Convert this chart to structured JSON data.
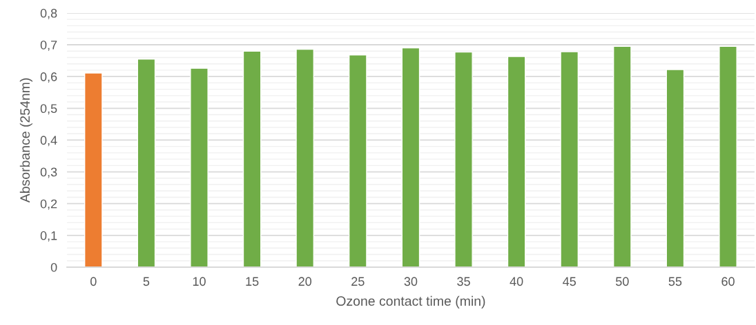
{
  "chart_data": {
    "type": "bar",
    "xlabel": "Ozone contact time (min)",
    "ylabel": "Absorbance (254nm)",
    "categories": [
      "0",
      "5",
      "10",
      "15",
      "20",
      "25",
      "30",
      "35",
      "40",
      "45",
      "50",
      "55",
      "60"
    ],
    "values": [
      0.611,
      0.655,
      0.626,
      0.68,
      0.686,
      0.668,
      0.69,
      0.677,
      0.663,
      0.678,
      0.695,
      0.622,
      0.695
    ],
    "colors": [
      "#ed7d31",
      "#70ad47",
      "#70ad47",
      "#70ad47",
      "#70ad47",
      "#70ad47",
      "#70ad47",
      "#70ad47",
      "#70ad47",
      "#70ad47",
      "#70ad47",
      "#70ad47",
      "#70ad47"
    ],
    "ylim": [
      0,
      0.8
    ],
    "yticks": [
      0,
      {
        "value": 0.02,
        "label": null
      },
      {
        "value": 0.04,
        "label": null
      },
      {
        "value": 0.06,
        "label": null
      },
      {
        "value": 0.08,
        "label": null
      },
      {
        "value": 0.1,
        "label": "0,1"
      },
      {
        "value": 0.12,
        "label": null
      },
      {
        "value": 0.14,
        "label": null
      },
      {
        "value": 0.16,
        "label": null
      },
      {
        "value": 0.18,
        "label": null
      },
      {
        "value": 0.2,
        "label": "0,2"
      },
      {
        "value": 0.22,
        "label": null
      },
      {
        "value": 0.24,
        "label": null
      },
      {
        "value": 0.26,
        "label": null
      },
      {
        "value": 0.28,
        "label": null
      },
      {
        "value": 0.3,
        "label": "0,3"
      },
      {
        "value": 0.32,
        "label": null
      },
      {
        "value": 0.34,
        "label": null
      },
      {
        "value": 0.36,
        "label": null
      },
      {
        "value": 0.38,
        "label": null
      },
      {
        "value": 0.4,
        "label": "0,4"
      },
      {
        "value": 0.42,
        "label": null
      },
      {
        "value": 0.44,
        "label": null
      },
      {
        "value": 0.46,
        "label": null
      },
      {
        "value": 0.48,
        "label": null
      },
      {
        "value": 0.5,
        "label": "0,5"
      },
      {
        "value": 0.52,
        "label": null
      },
      {
        "value": 0.54,
        "label": null
      },
      {
        "value": 0.56,
        "label": null
      },
      {
        "value": 0.58,
        "label": null
      },
      {
        "value": 0.6,
        "label": "0,6"
      },
      {
        "value": 0.62,
        "label": null
      },
      {
        "value": 0.64,
        "label": null
      },
      {
        "value": 0.66,
        "label": null
      },
      {
        "value": 0.68,
        "label": null
      },
      {
        "value": 0.7,
        "label": "0,7"
      },
      {
        "value": 0.72,
        "label": null
      },
      {
        "value": 0.74,
        "label": null
      },
      {
        "value": 0.76,
        "label": null
      },
      {
        "value": 0.78,
        "label": null
      },
      {
        "value": 0.8,
        "label": "0,8"
      }
    ],
    "grid": "y"
  }
}
